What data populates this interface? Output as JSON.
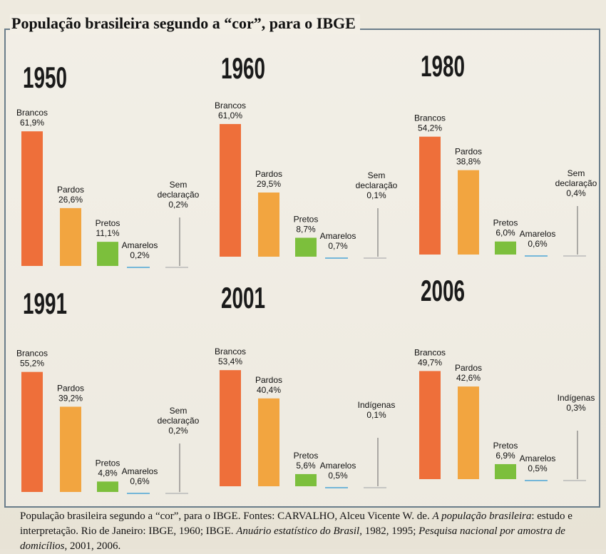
{
  "title": "População brasileira segundo a “cor”, para o IBGE",
  "caption": {
    "part1": "População brasileira segundo a “cor”, para o IBGE. Fontes: CARVALHO, Alceu Vicente W. de. ",
    "italic1": "A população brasileira",
    "part2": ": estudo e interpretação. Rio de Janeiro: IBGE, 1960; IBGE. ",
    "italic2": "Anuário estatístico do Brasil",
    "part3": ", 1982, 1995; ",
    "italic3": "Pesquisa nacional por amostra de domicílios",
    "part4": ", 2001, 2006."
  },
  "colors": {
    "brancos": "#ee6f3a",
    "pardos": "#f2a540",
    "pretos": "#7cbf3c",
    "amarelos": "#4aa5d6",
    "other": "#b9b9b9"
  },
  "chart_data": [
    {
      "type": "bar",
      "title": "1950",
      "categories": [
        "Brancos",
        "Pardos",
        "Pretos",
        "Amarelos",
        "Sem declaração"
      ],
      "values": [
        61.9,
        26.6,
        11.1,
        0.2,
        0.2
      ],
      "value_labels": [
        "61,9%",
        "26,6%",
        "11,1%",
        "0,2%",
        "0,2%"
      ]
    },
    {
      "type": "bar",
      "title": "1960",
      "categories": [
        "Brancos",
        "Pardos",
        "Pretos",
        "Amarelos",
        "Sem declaração"
      ],
      "values": [
        61.0,
        29.5,
        8.7,
        0.7,
        0.1
      ],
      "value_labels": [
        "61,0%",
        "29,5%",
        "8,7%",
        "0,7%",
        "0,1%"
      ]
    },
    {
      "type": "bar",
      "title": "1980",
      "categories": [
        "Brancos",
        "Pardos",
        "Pretos",
        "Amarelos",
        "Sem declaração"
      ],
      "values": [
        54.2,
        38.8,
        6.0,
        0.6,
        0.4
      ],
      "value_labels": [
        "54,2%",
        "38,8%",
        "6,0%",
        "0,6%",
        "0,4%"
      ]
    },
    {
      "type": "bar",
      "title": "1991",
      "categories": [
        "Brancos",
        "Pardos",
        "Pretos",
        "Amarelos",
        "Sem declaração"
      ],
      "values": [
        55.2,
        39.2,
        4.8,
        0.6,
        0.2
      ],
      "value_labels": [
        "55,2%",
        "39,2%",
        "4,8%",
        "0,6%",
        "0,2%"
      ]
    },
    {
      "type": "bar",
      "title": "2001",
      "categories": [
        "Brancos",
        "Pardos",
        "Pretos",
        "Amarelos",
        "Indígenas"
      ],
      "values": [
        53.4,
        40.4,
        5.6,
        0.5,
        0.1
      ],
      "value_labels": [
        "53,4%",
        "40,4%",
        "5,6%",
        "0,5%",
        "0,1%"
      ]
    },
    {
      "type": "bar",
      "title": "2006",
      "categories": [
        "Brancos",
        "Pardos",
        "Pretos",
        "Amarelos",
        "Indígenas"
      ],
      "values": [
        49.7,
        42.6,
        6.9,
        0.5,
        0.3
      ],
      "value_labels": [
        "49,7%",
        "42,6%",
        "6,9%",
        "0,5%",
        "0,3%"
      ]
    }
  ]
}
